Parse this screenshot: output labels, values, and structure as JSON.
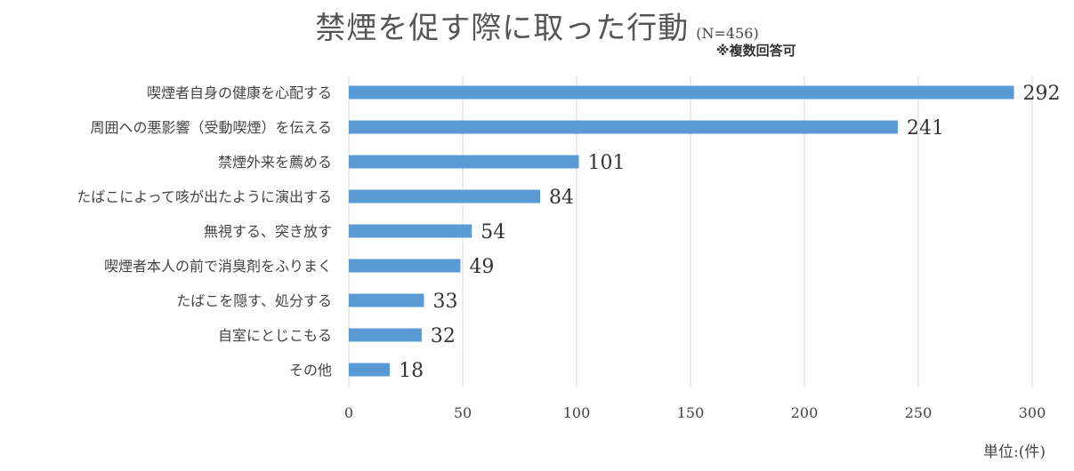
{
  "title": "禁煙を促す際に取った行動",
  "title_n": "(N=456)",
  "note": "※複数回答可",
  "unit": "単位:(件)",
  "chart_data": {
    "type": "bar",
    "orientation": "horizontal",
    "categories": [
      "喫煙者自身の健康を心配する",
      "周囲への悪影響（受動喫煙）を伝える",
      "禁煙外来を薦める",
      "たばこによって咳が出たように演出する",
      "無視する、突き放す",
      "喫煙者本人の前で消臭剤をふりまく",
      "たばこを隠す、処分する",
      "自室にとじこもる",
      "その他"
    ],
    "values": [
      292,
      241,
      101,
      84,
      54,
      49,
      33,
      32,
      18
    ],
    "xlim": [
      0,
      300
    ],
    "xticks": [
      0,
      50,
      100,
      150,
      200,
      250,
      300
    ],
    "grid": true,
    "bar_color": "#5b9bd5"
  }
}
